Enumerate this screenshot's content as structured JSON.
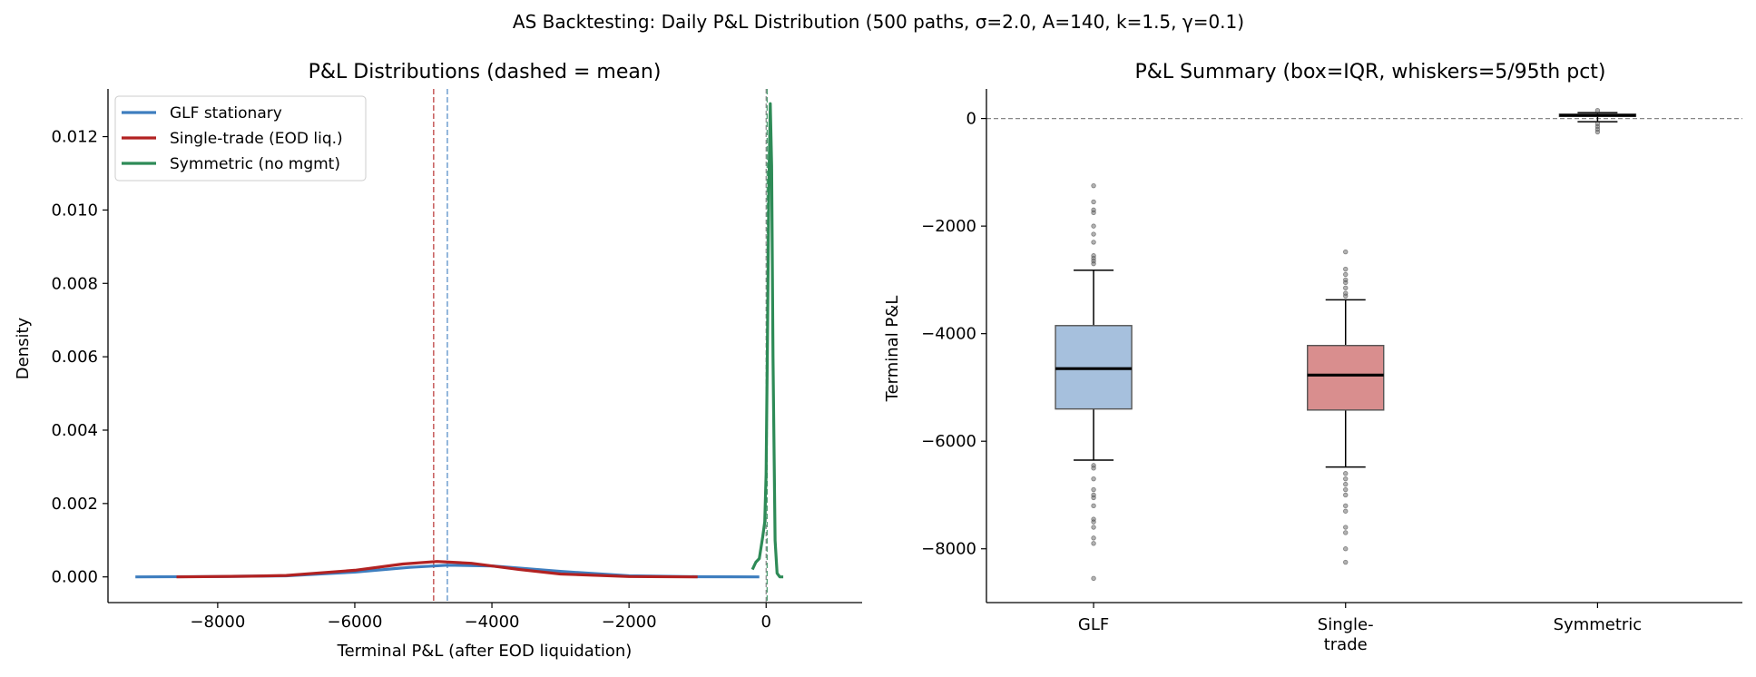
{
  "figure": {
    "suptitle": "AS Backtesting: Daily P&L Distribution  (500 paths, σ=2.0, A=140, k=1.5, γ=0.1)"
  },
  "colors": {
    "glf": "#3e7ebf",
    "single": "#b22222",
    "symmetric": "#2e8b57",
    "glf_box": "#a6c0dd",
    "single_box": "#d98e8e",
    "zero_line": "#888888"
  },
  "chart_data": [
    {
      "type": "line",
      "title": "P&L Distributions (dashed = mean)",
      "xlabel": "Terminal P&L (after EOD liquidation)",
      "ylabel": "Density",
      "xlim": [
        -9600,
        1400
      ],
      "ylim": [
        -0.0007,
        0.0133
      ],
      "xticks": [
        -8000,
        -6000,
        -4000,
        -2000,
        0
      ],
      "xtick_labels": [
        "−8000",
        "−6000",
        "−4000",
        "−2000",
        "0"
      ],
      "yticks": [
        0,
        0.002,
        0.004,
        0.006,
        0.008,
        0.01,
        0.012
      ],
      "ytick_labels": [
        "0.000",
        "0.002",
        "0.004",
        "0.006",
        "0.008",
        "0.010",
        "0.012"
      ],
      "grid": false,
      "legend": "top-left",
      "series": [
        {
          "name": "GLF stationary",
          "color_key": "glf",
          "mean": -4650,
          "x": [
            -9200,
            -8000,
            -7000,
            -6000,
            -5200,
            -4650,
            -4000,
            -3000,
            -2000,
            -1000,
            -100
          ],
          "y": [
            0.0,
            1e-05,
            3e-05,
            0.00013,
            0.00026,
            0.00032,
            0.0003,
            0.00015,
            3e-05,
            5e-06,
            0.0
          ]
        },
        {
          "name": "Single-trade (EOD liq.)",
          "color_key": "single",
          "mean": -4850,
          "x": [
            -8600,
            -7500,
            -7000,
            -6000,
            -5300,
            -4800,
            -4300,
            -3600,
            -3000,
            -2000,
            -1000
          ],
          "y": [
            0.0,
            2e-05,
            4e-05,
            0.00018,
            0.00035,
            0.00042,
            0.00037,
            0.0002,
            8e-05,
            1e-05,
            0.0
          ]
        },
        {
          "name": "Symmetric (no mgmt)",
          "color_key": "symmetric",
          "mean": 15,
          "x": [
            -200,
            -150,
            -100,
            -50,
            -20,
            0,
            20,
            40,
            60,
            80,
            100,
            130,
            160,
            200,
            250
          ],
          "y": [
            0.0002,
            0.0004,
            0.0005,
            0.0011,
            0.0015,
            0.0028,
            0.0065,
            0.0108,
            0.0129,
            0.0112,
            0.006,
            0.001,
            0.0001,
            0.0,
            0.0
          ]
        }
      ]
    },
    {
      "type": "box",
      "title": "P&L Summary (box=IQR, whiskers=5/95th pct)",
      "xlabel": "",
      "ylabel": "Terminal P&L",
      "categories": [
        "GLF",
        "Single-\ntrade",
        "Symmetric"
      ],
      "category_lines": [
        [
          "GLF"
        ],
        [
          "Single-",
          "trade"
        ],
        [
          "Symmetric"
        ]
      ],
      "ylim": [
        -9000,
        550
      ],
      "yticks": [
        0,
        -2000,
        -4000,
        -6000,
        -8000
      ],
      "ytick_labels": [
        "0",
        "−2000",
        "−4000",
        "−6000",
        "−8000"
      ],
      "reference_line": 0,
      "boxes": [
        {
          "category": "GLF",
          "color_key": "glf_box",
          "q1": -5400,
          "median": -4650,
          "q3": -3850,
          "whisker_low": -6350,
          "whisker_high": -2820,
          "outliers": [
            -1250,
            -1550,
            -1700,
            -1750,
            -2000,
            -2150,
            -2300,
            -2550,
            -2600,
            -2650,
            -2700,
            -6450,
            -6500,
            -6700,
            -6900,
            -7000,
            -7050,
            -7200,
            -7450,
            -7500,
            -7600,
            -7800,
            -7900,
            -8550
          ]
        },
        {
          "category": "Single-trade",
          "color_key": "single_box",
          "q1": -5420,
          "median": -4770,
          "q3": -4220,
          "whisker_low": -6480,
          "whisker_high": -3370,
          "outliers": [
            -2480,
            -2800,
            -2900,
            -3000,
            -3050,
            -3150,
            -3250,
            -3300,
            -6600,
            -6700,
            -6800,
            -6900,
            -7000,
            -7200,
            -7300,
            -7600,
            -7700,
            -8000,
            -8250
          ]
        },
        {
          "category": "Symmetric",
          "color_key": "symmetric",
          "q1": 40,
          "median": 60,
          "q3": 80,
          "whisker_low": -60,
          "whisker_high": 110,
          "outliers": [
            -100,
            -150,
            -200,
            -250,
            150
          ]
        }
      ]
    }
  ]
}
